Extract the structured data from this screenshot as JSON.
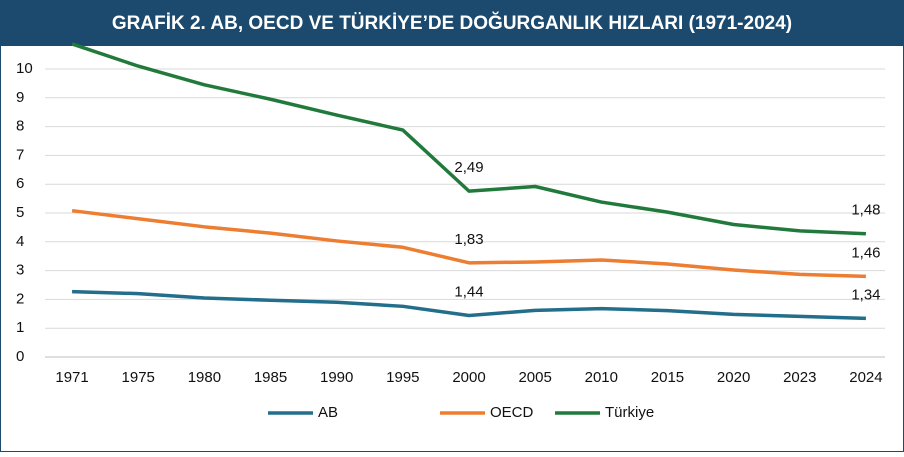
{
  "chart_data": {
    "type": "stacked-line",
    "title": "GRAFİK 2. AB, OECD VE TÜRKİYE’DE DOĞURGANLIK HIZLARI (1971-2024)",
    "categories": [
      "1971",
      "1975",
      "1980",
      "1985",
      "1990",
      "1995",
      "2000",
      "2005",
      "2010",
      "2015",
      "2020",
      "2023",
      "2024"
    ],
    "series": [
      {
        "name": "AB",
        "color": "#236e8a",
        "values": [
          2.27,
          2.2,
          2.05,
          1.97,
          1.9,
          1.76,
          1.44,
          1.62,
          1.68,
          1.61,
          1.48,
          1.41,
          1.34
        ],
        "value_labels": [
          null,
          null,
          null,
          null,
          null,
          null,
          "1,44",
          null,
          null,
          null,
          null,
          null,
          "1,34"
        ]
      },
      {
        "name": "OECD",
        "color": "#ed7d31",
        "values": [
          2.81,
          2.6,
          2.47,
          2.33,
          2.13,
          2.05,
          1.83,
          1.68,
          1.69,
          1.62,
          1.54,
          1.46,
          1.46
        ],
        "value_labels": [
          null,
          null,
          null,
          null,
          null,
          null,
          "1,83",
          null,
          null,
          null,
          null,
          null,
          "1,46"
        ]
      },
      {
        "name": "Türkiye",
        "color": "#217a3c",
        "values": [
          5.79,
          5.3,
          4.93,
          4.65,
          4.37,
          4.07,
          2.49,
          2.62,
          2.01,
          1.8,
          1.58,
          1.51,
          1.48
        ],
        "value_labels": [
          null,
          null,
          null,
          null,
          null,
          null,
          "2,49",
          null,
          null,
          null,
          null,
          null,
          "1,48"
        ]
      }
    ],
    "ylim": [
      0,
      10
    ],
    "yticks": [
      0,
      1,
      2,
      3,
      4,
      5,
      6,
      7,
      8,
      9,
      10
    ],
    "grid": true,
    "legend": "bottom"
  }
}
